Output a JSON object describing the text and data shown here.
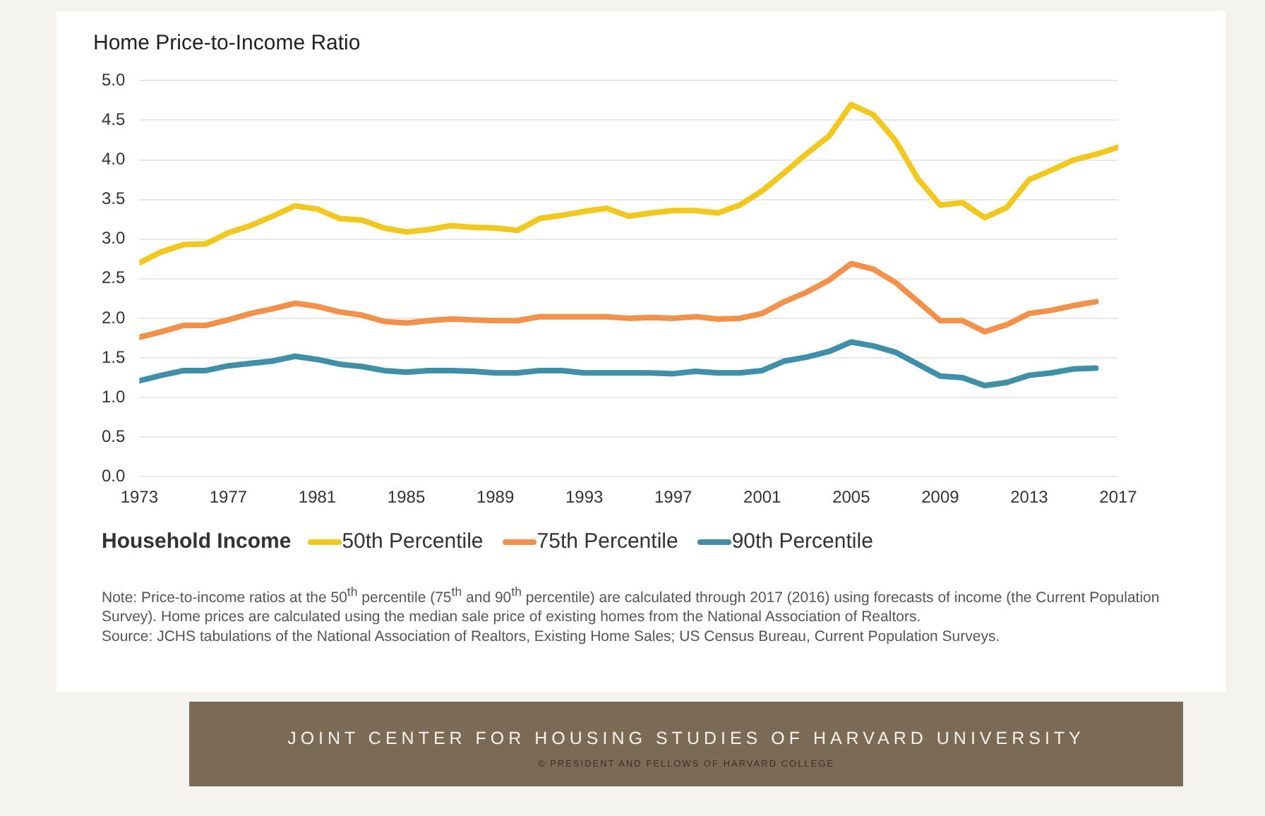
{
  "chart_data": {
    "type": "line",
    "title": "Home Price-to-Income Ratio",
    "legend_title": "Household Income",
    "legend": "bottom",
    "grid": "y",
    "marker": "none",
    "line_style": "solid",
    "xlim": [
      1973,
      2017
    ],
    "xticks": [
      1973,
      1977,
      1981,
      1985,
      1989,
      1993,
      1997,
      2001,
      2005,
      2009,
      2013,
      2017
    ],
    "ylim": [
      0,
      5
    ],
    "yticks": [
      {
        "value": 0,
        "label": "0.0"
      },
      {
        "value": 0.5,
        "label": "0.5"
      },
      {
        "value": 1,
        "label": "1.0"
      },
      {
        "value": 1.5,
        "label": "1.5"
      },
      {
        "value": 2,
        "label": "2.0"
      },
      {
        "value": 2.5,
        "label": "2.5"
      },
      {
        "value": 3,
        "label": "3.0"
      },
      {
        "value": 3.5,
        "label": "3.5"
      },
      {
        "value": 4,
        "label": "4.0"
      },
      {
        "value": 4.5,
        "label": "4.5"
      },
      {
        "value": 5,
        "label": "5.0"
      }
    ],
    "series": [
      {
        "name": "50th Percentile",
        "color": "#f2c81e",
        "x": [
          1973,
          1974,
          1975,
          1976,
          1977,
          1978,
          1979,
          1980,
          1981,
          1982,
          1983,
          1984,
          1985,
          1986,
          1987,
          1988,
          1989,
          1990,
          1991,
          1992,
          1993,
          1994,
          1995,
          1996,
          1997,
          1998,
          1999,
          2000,
          2001,
          2002,
          2003,
          2004,
          2005,
          2006,
          2007,
          2008,
          2009,
          2010,
          2011,
          2012,
          2013,
          2014,
          2015,
          2016,
          2017
        ],
        "values": [
          2.7,
          2.84,
          2.93,
          2.94,
          3.08,
          3.17,
          3.29,
          3.42,
          3.38,
          3.26,
          3.24,
          3.14,
          3.09,
          3.12,
          3.17,
          3.15,
          3.14,
          3.11,
          3.26,
          3.3,
          3.35,
          3.39,
          3.29,
          3.33,
          3.36,
          3.36,
          3.33,
          3.43,
          3.61,
          3.84,
          4.08,
          4.3,
          4.7,
          4.57,
          4.24,
          3.76,
          3.43,
          3.46,
          3.27,
          3.4,
          3.75,
          3.87,
          4.0,
          4.07,
          4.16
        ]
      },
      {
        "name": "75th Percentile",
        "color": "#f3914a",
        "x": [
          1973,
          1974,
          1975,
          1976,
          1977,
          1978,
          1979,
          1980,
          1981,
          1982,
          1983,
          1984,
          1985,
          1986,
          1987,
          1988,
          1989,
          1990,
          1991,
          1992,
          1993,
          1994,
          1995,
          1996,
          1997,
          1998,
          1999,
          2000,
          2001,
          2002,
          2003,
          2004,
          2005,
          2006,
          2007,
          2008,
          2009,
          2010,
          2011,
          2012,
          2013,
          2014,
          2015,
          2016
        ],
        "values": [
          1.76,
          1.83,
          1.91,
          1.91,
          1.98,
          2.06,
          2.12,
          2.19,
          2.15,
          2.08,
          2.04,
          1.96,
          1.94,
          1.97,
          1.99,
          1.98,
          1.97,
          1.97,
          2.02,
          2.02,
          2.02,
          2.02,
          2.0,
          2.01,
          2.0,
          2.02,
          1.99,
          2.0,
          2.06,
          2.21,
          2.33,
          2.48,
          2.69,
          2.62,
          2.45,
          2.21,
          1.97,
          1.97,
          1.83,
          1.92,
          2.06,
          2.1,
          2.16,
          2.21
        ]
      },
      {
        "name": "90th Percentile",
        "color": "#3f8fa8",
        "x": [
          1973,
          1974,
          1975,
          1976,
          1977,
          1978,
          1979,
          1980,
          1981,
          1982,
          1983,
          1984,
          1985,
          1986,
          1987,
          1988,
          1989,
          1990,
          1991,
          1992,
          1993,
          1994,
          1995,
          1996,
          1997,
          1998,
          1999,
          2000,
          2001,
          2002,
          2003,
          2004,
          2005,
          2006,
          2007,
          2008,
          2009,
          2010,
          2011,
          2012,
          2013,
          2014,
          2015,
          2016
        ],
        "values": [
          1.21,
          1.28,
          1.34,
          1.34,
          1.4,
          1.43,
          1.46,
          1.52,
          1.48,
          1.42,
          1.39,
          1.34,
          1.32,
          1.34,
          1.34,
          1.33,
          1.31,
          1.31,
          1.34,
          1.34,
          1.31,
          1.31,
          1.31,
          1.31,
          1.3,
          1.33,
          1.31,
          1.31,
          1.34,
          1.46,
          1.51,
          1.58,
          1.7,
          1.65,
          1.57,
          1.42,
          1.27,
          1.25,
          1.15,
          1.19,
          1.28,
          1.31,
          1.36,
          1.37
        ]
      }
    ],
    "annotations": [
      "Note: Price-to-income ratios at the 50$^{th}$ percentile (75$^{th}$ and 90$^{th}$ percentile) are calculated through 2017 (2016) using forecasts of income (the Current Population Survey). Home prices are calculated using the median sale price of existing homes from the National Association of Realtors.",
      "Source: JCHS tabulations of the National Association of Realtors, Existing Home Sales; US Census Bureau, Current Population Surveys.",
      "JOINT CENTER FOR HOUSING STUDIES OF HARVARD UNIVERSITY",
      "© PRESIDENT AND FELLOWS OF HARVARD COLLEGE"
    ]
  }
}
